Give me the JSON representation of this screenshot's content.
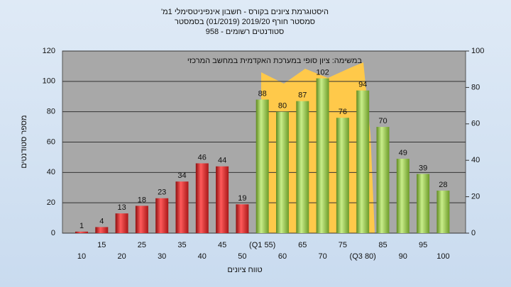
{
  "chart_data": {
    "type": "bar",
    "title_lines": [
      "היסטוגרמת ציונים בקורס - חשבון אינפיניטסימלי 1מ'",
      "סמסטר חורף 2019/20 (01/2019) בסמסטר",
      "סטודנטים רשומים - 958"
    ],
    "annotation": "במשימה: ציון סופי במערכת האקדמית במחשב המרכזי",
    "ylabel": "מספר סטודנטים",
    "xlabel": "טווח ציונים",
    "categories": [
      "10",
      "15",
      "20",
      "25",
      "30",
      "35",
      "40",
      "45",
      "50",
      "(Q1 55)",
      "60",
      "65",
      "70",
      "75",
      "(Q3 80)",
      "85",
      "90",
      "95",
      "100"
    ],
    "values": [
      1,
      4,
      13,
      18,
      23,
      34,
      46,
      44,
      19,
      88,
      80,
      87,
      102,
      76,
      94,
      70,
      49,
      39,
      28
    ],
    "colors": [
      "red",
      "red",
      "red",
      "red",
      "red",
      "red",
      "red",
      "red",
      "red",
      "green",
      "green",
      "green",
      "green",
      "green",
      "green",
      "green",
      "green",
      "green",
      "green"
    ],
    "ylim": [
      0,
      120
    ],
    "yticks": [
      0,
      20,
      40,
      60,
      80,
      100,
      120
    ],
    "y2lim": [
      0,
      100
    ],
    "y2ticks": [
      0,
      20,
      40,
      60,
      80,
      100
    ],
    "grid": true
  }
}
